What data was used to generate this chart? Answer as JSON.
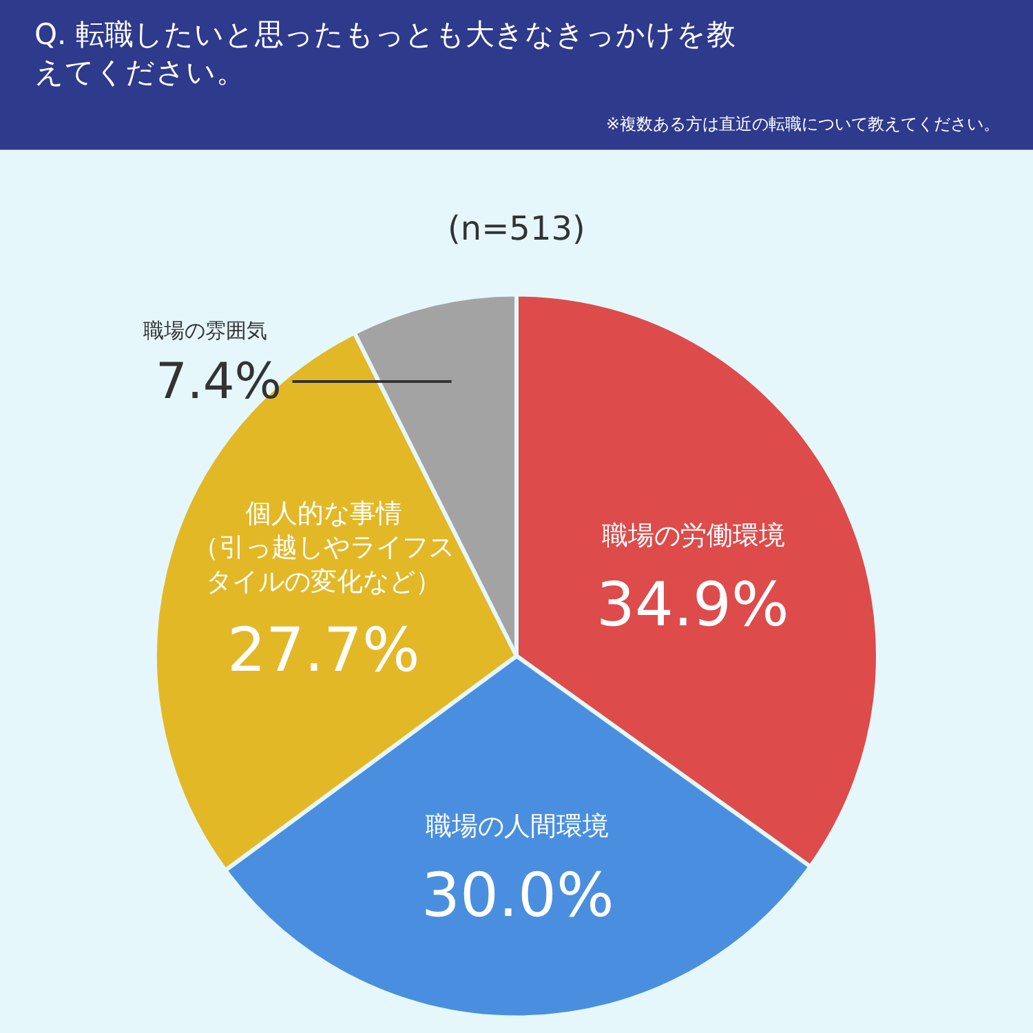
{
  "chart_data": {
    "type": "pie",
    "title": "Q. 転職したいと思ったもっとも大きなきっかけを教えてください。",
    "subtitle": "※複数ある方は直近の転職について教えてください。",
    "annotations": [
      "(n=513)"
    ],
    "categories": [
      "職場の労働環境",
      "職場の人間環境",
      "個人的な事情（引っ越しやライフスタイルの変化など）",
      "職場の雰囲気"
    ],
    "values": [
      34.9,
      30.0,
      27.7,
      7.4
    ],
    "value_labels": [
      "34.9%",
      "30.0%",
      "27.7%",
      "7.4%"
    ],
    "colors": [
      "#dd4b4b",
      "#4a8fdf",
      "#e3b826",
      "#a3a3a3"
    ],
    "legend": false
  }
}
